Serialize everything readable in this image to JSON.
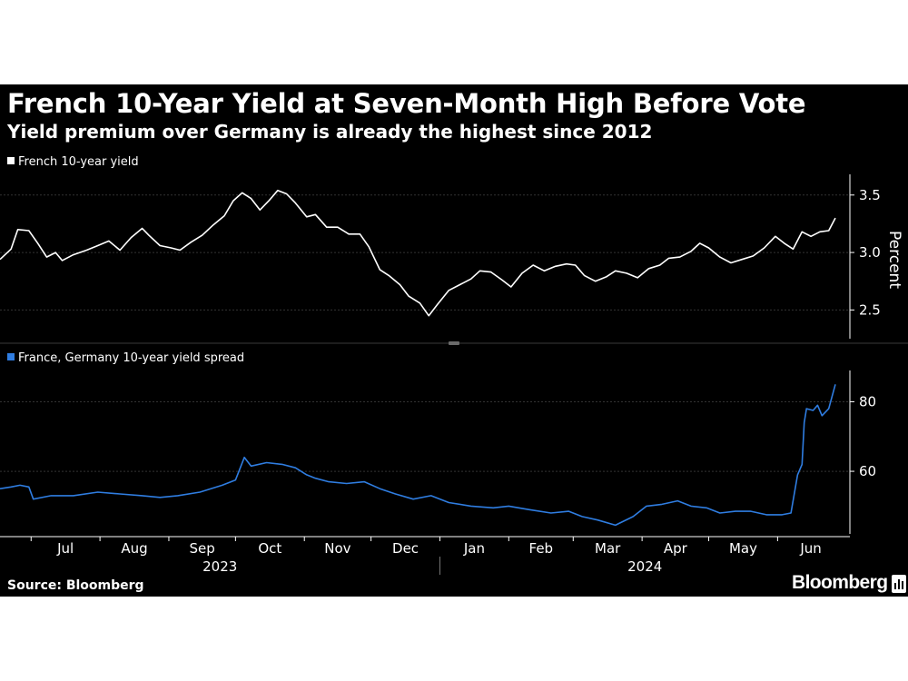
{
  "header": {
    "title": "French 10-Year Yield at Seven-Month High Before Vote",
    "subtitle": "Yield premium over Germany is already the highest since 2012"
  },
  "footer": {
    "source": "Source: Bloomberg",
    "brand": "Bloomberg"
  },
  "icons": {
    "brand_badge": "bloomberg-terminal-icon"
  },
  "colors": {
    "background": "#000000",
    "top_series": "#ffffff",
    "bottom_series": "#2f7de1",
    "axis": "#ffffff",
    "grid": "#333333"
  },
  "x_axis": {
    "months": [
      {
        "label": "Jul",
        "month": "2023-07"
      },
      {
        "label": "Aug",
        "month": "2023-08"
      },
      {
        "label": "Sep",
        "month": "2023-09"
      },
      {
        "label": "Oct",
        "month": "2023-10"
      },
      {
        "label": "Nov",
        "month": "2023-11"
      },
      {
        "label": "Dec",
        "month": "2023-12"
      },
      {
        "label": "Jan",
        "month": "2024-01"
      },
      {
        "label": "Feb",
        "month": "2024-02"
      },
      {
        "label": "Mar",
        "month": "2024-03"
      },
      {
        "label": "Apr",
        "month": "2024-04"
      },
      {
        "label": "May",
        "month": "2024-05"
      },
      {
        "label": "Jun",
        "month": "2024-06"
      }
    ],
    "years": [
      "2023",
      "2024"
    ],
    "range": [
      "2023-06-17",
      "2024-06-27"
    ]
  },
  "chart_data": [
    {
      "type": "line",
      "legend": "French 10-year yield",
      "ylabel": "Percent",
      "yticks": [
        2.5,
        3.0,
        3.5
      ],
      "ylim": [
        2.25,
        3.68
      ],
      "grid": true,
      "legend_position": "top-left",
      "series": [
        {
          "name": "French 10-year yield",
          "color": "#ffffff",
          "points": [
            [
              "2023-06-17",
              2.94
            ],
            [
              "2023-06-22",
              3.03
            ],
            [
              "2023-06-25",
              3.2
            ],
            [
              "2023-06-30",
              3.19
            ],
            [
              "2023-07-04",
              3.08
            ],
            [
              "2023-07-08",
              2.96
            ],
            [
              "2023-07-12",
              3.0
            ],
            [
              "2023-07-15",
              2.93
            ],
            [
              "2023-07-20",
              2.98
            ],
            [
              "2023-07-26",
              3.02
            ],
            [
              "2023-07-31",
              3.06
            ],
            [
              "2023-08-05",
              3.1
            ],
            [
              "2023-08-10",
              3.02
            ],
            [
              "2023-08-15",
              3.13
            ],
            [
              "2023-08-20",
              3.21
            ],
            [
              "2023-08-23",
              3.15
            ],
            [
              "2023-08-28",
              3.06
            ],
            [
              "2023-09-02",
              3.04
            ],
            [
              "2023-09-06",
              3.02
            ],
            [
              "2023-09-11",
              3.09
            ],
            [
              "2023-09-16",
              3.15
            ],
            [
              "2023-09-21",
              3.24
            ],
            [
              "2023-09-26",
              3.32
            ],
            [
              "2023-09-30",
              3.45
            ],
            [
              "2023-10-04",
              3.52
            ],
            [
              "2023-10-08",
              3.47
            ],
            [
              "2023-10-12",
              3.37
            ],
            [
              "2023-10-16",
              3.45
            ],
            [
              "2023-10-20",
              3.54
            ],
            [
              "2023-10-24",
              3.51
            ],
            [
              "2023-10-28",
              3.43
            ],
            [
              "2023-11-02",
              3.31
            ],
            [
              "2023-11-06",
              3.33
            ],
            [
              "2023-11-11",
              3.22
            ],
            [
              "2023-11-16",
              3.22
            ],
            [
              "2023-11-21",
              3.16
            ],
            [
              "2023-11-26",
              3.16
            ],
            [
              "2023-11-30",
              3.05
            ],
            [
              "2023-12-05",
              2.85
            ],
            [
              "2023-12-09",
              2.8
            ],
            [
              "2023-12-14",
              2.72
            ],
            [
              "2023-12-18",
              2.62
            ],
            [
              "2023-12-23",
              2.56
            ],
            [
              "2023-12-27",
              2.45
            ],
            [
              "2023-12-31",
              2.55
            ],
            [
              "2024-01-05",
              2.67
            ],
            [
              "2024-01-10",
              2.72
            ],
            [
              "2024-01-15",
              2.77
            ],
            [
              "2024-01-19",
              2.84
            ],
            [
              "2024-01-24",
              2.83
            ],
            [
              "2024-01-29",
              2.76
            ],
            [
              "2024-02-02",
              2.7
            ],
            [
              "2024-02-07",
              2.82
            ],
            [
              "2024-02-12",
              2.89
            ],
            [
              "2024-02-17",
              2.84
            ],
            [
              "2024-02-22",
              2.88
            ],
            [
              "2024-02-27",
              2.9
            ],
            [
              "2024-03-02",
              2.89
            ],
            [
              "2024-03-06",
              2.8
            ],
            [
              "2024-03-11",
              2.75
            ],
            [
              "2024-03-16",
              2.79
            ],
            [
              "2024-03-20",
              2.84
            ],
            [
              "2024-03-25",
              2.82
            ],
            [
              "2024-03-30",
              2.78
            ],
            [
              "2024-04-04",
              2.86
            ],
            [
              "2024-04-09",
              2.89
            ],
            [
              "2024-04-13",
              2.95
            ],
            [
              "2024-04-18",
              2.96
            ],
            [
              "2024-04-23",
              3.01
            ],
            [
              "2024-04-27",
              3.08
            ],
            [
              "2024-05-01",
              3.04
            ],
            [
              "2024-05-06",
              2.96
            ],
            [
              "2024-05-11",
              2.91
            ],
            [
              "2024-05-16",
              2.94
            ],
            [
              "2024-05-21",
              2.97
            ],
            [
              "2024-05-26",
              3.04
            ],
            [
              "2024-05-31",
              3.14
            ],
            [
              "2024-06-04",
              3.08
            ],
            [
              "2024-06-08",
              3.03
            ],
            [
              "2024-06-12",
              3.18
            ],
            [
              "2024-06-16",
              3.14
            ],
            [
              "2024-06-20",
              3.18
            ],
            [
              "2024-06-24",
              3.19
            ],
            [
              "2024-06-27",
              3.3
            ]
          ]
        }
      ]
    },
    {
      "type": "line",
      "legend": "France, Germany 10-year yield spread",
      "yticks": [
        60,
        80
      ],
      "ylim": [
        42,
        89
      ],
      "grid": true,
      "legend_position": "top-left",
      "series": [
        {
          "name": "France, Germany 10-year yield spread",
          "color": "#2f7de1",
          "points": [
            [
              "2023-06-17",
              55.0
            ],
            [
              "2023-06-22",
              55.5
            ],
            [
              "2023-06-26",
              56.0
            ],
            [
              "2023-06-30",
              55.5
            ],
            [
              "2023-07-02",
              52.0
            ],
            [
              "2023-07-10",
              53.0
            ],
            [
              "2023-07-20",
              53.0
            ],
            [
              "2023-07-31",
              54.0
            ],
            [
              "2023-08-10",
              53.5
            ],
            [
              "2023-08-20",
              53.0
            ],
            [
              "2023-08-28",
              52.5
            ],
            [
              "2023-09-05",
              53.0
            ],
            [
              "2023-09-15",
              54.0
            ],
            [
              "2023-09-25",
              56.0
            ],
            [
              "2023-10-01",
              57.5
            ],
            [
              "2023-10-05",
              64.0
            ],
            [
              "2023-10-08",
              61.5
            ],
            [
              "2023-10-15",
              62.5
            ],
            [
              "2023-10-22",
              62.0
            ],
            [
              "2023-10-28",
              61.0
            ],
            [
              "2023-11-02",
              59.0
            ],
            [
              "2023-11-06",
              58.0
            ],
            [
              "2023-11-12",
              57.0
            ],
            [
              "2023-11-20",
              56.5
            ],
            [
              "2023-11-28",
              57.0
            ],
            [
              "2023-12-05",
              55.0
            ],
            [
              "2023-12-12",
              53.5
            ],
            [
              "2023-12-20",
              52.0
            ],
            [
              "2023-12-28",
              53.0
            ],
            [
              "2024-01-05",
              51.0
            ],
            [
              "2024-01-15",
              50.0
            ],
            [
              "2024-01-25",
              49.5
            ],
            [
              "2024-02-01",
              50.0
            ],
            [
              "2024-02-10",
              49.0
            ],
            [
              "2024-02-20",
              48.0
            ],
            [
              "2024-02-28",
              48.5
            ],
            [
              "2024-03-05",
              47.0
            ],
            [
              "2024-03-12",
              46.0
            ],
            [
              "2024-03-20",
              44.5
            ],
            [
              "2024-03-28",
              47.0
            ],
            [
              "2024-04-03",
              50.0
            ],
            [
              "2024-04-10",
              50.5
            ],
            [
              "2024-04-17",
              51.5
            ],
            [
              "2024-04-23",
              50.0
            ],
            [
              "2024-04-30",
              49.5
            ],
            [
              "2024-05-06",
              48.0
            ],
            [
              "2024-05-13",
              48.5
            ],
            [
              "2024-05-20",
              48.5
            ],
            [
              "2024-05-27",
              47.5
            ],
            [
              "2024-06-03",
              47.5
            ],
            [
              "2024-06-07",
              48.0
            ],
            [
              "2024-06-10",
              59.0
            ],
            [
              "2024-06-12",
              62.0
            ],
            [
              "2024-06-13",
              74.0
            ],
            [
              "2024-06-14",
              78.0
            ],
            [
              "2024-06-17",
              77.5
            ],
            [
              "2024-06-19",
              79.0
            ],
            [
              "2024-06-21",
              76.0
            ],
            [
              "2024-06-24",
              78.0
            ],
            [
              "2024-06-27",
              85.0
            ]
          ]
        }
      ]
    }
  ]
}
